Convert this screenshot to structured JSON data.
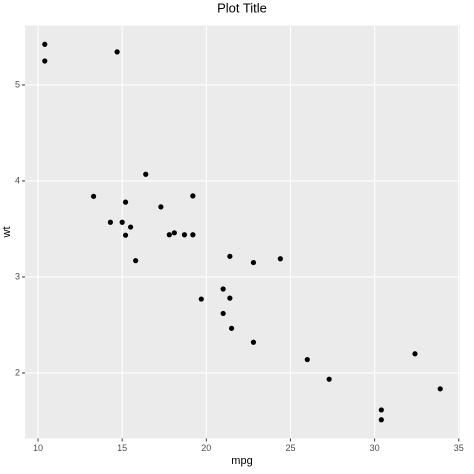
{
  "chart_data": {
    "type": "scatter",
    "title": "Plot Title",
    "x_label": "mpg",
    "y_label": "wt",
    "x": [
      21.0,
      21.0,
      22.8,
      21.4,
      18.7,
      18.1,
      14.3,
      24.4,
      22.8,
      19.2,
      17.8,
      16.4,
      17.3,
      15.2,
      10.4,
      10.4,
      14.7,
      32.4,
      30.4,
      33.9,
      21.5,
      15.5,
      15.2,
      13.3,
      19.2,
      27.3,
      26.0,
      30.4,
      15.8,
      19.7,
      15.0,
      21.4
    ],
    "values": [
      2.62,
      2.875,
      2.32,
      3.215,
      3.44,
      3.46,
      3.57,
      3.19,
      3.15,
      3.44,
      3.44,
      4.07,
      3.73,
      3.78,
      5.25,
      5.424,
      5.345,
      2.2,
      1.615,
      1.835,
      2.465,
      3.52,
      3.435,
      3.84,
      3.845,
      1.935,
      2.14,
      1.513,
      3.17,
      2.77,
      3.57,
      2.78
    ],
    "color": "#000000",
    "xlim": [
      9.225,
      35.075
    ],
    "xticks": [
      10,
      15,
      20,
      25,
      30,
      35
    ],
    "ylim": [
      1.3175,
      5.6196
    ],
    "yticks": [
      2,
      3,
      4,
      5
    ],
    "grid": true
  }
}
